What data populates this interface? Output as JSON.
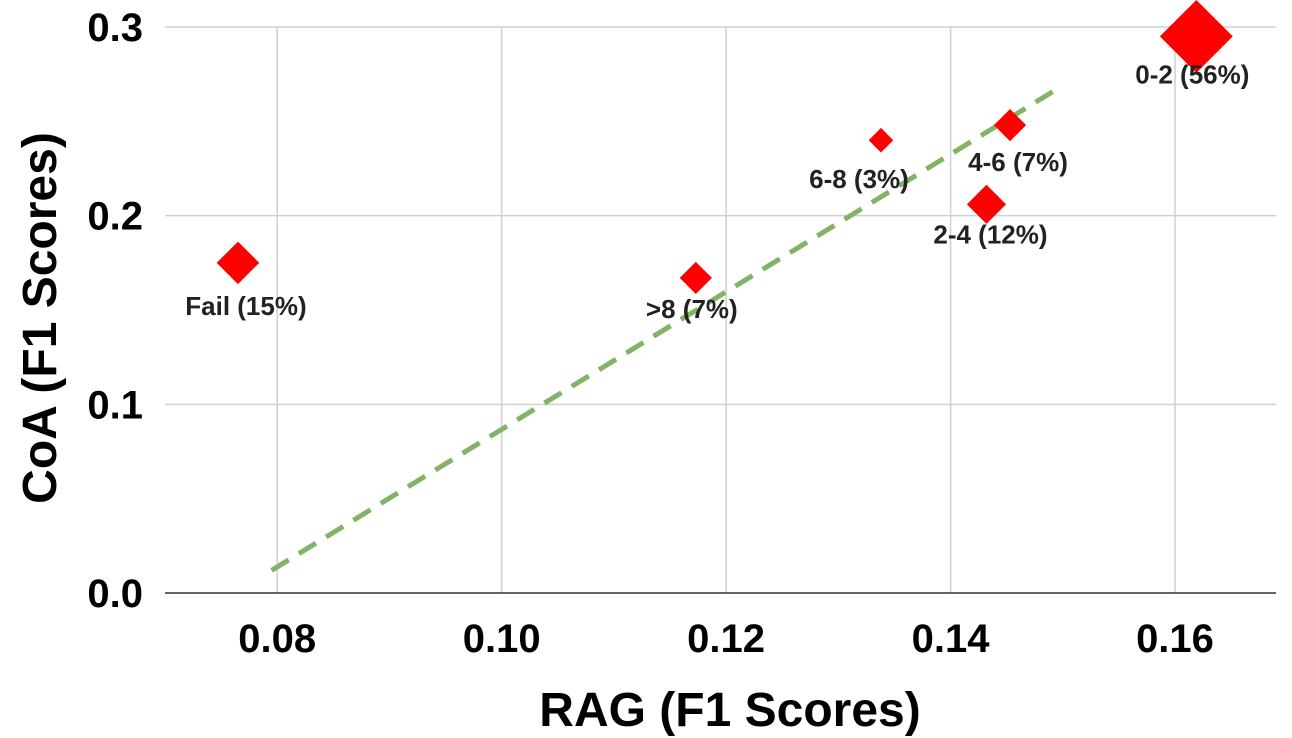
{
  "chart_data": {
    "type": "scatter",
    "title": "",
    "xlabel": "RAG (F1 Scores)",
    "ylabel": "CoA (F1 Scores)",
    "xlim": [
      0.07,
      0.169
    ],
    "ylim": [
      0.0,
      0.3
    ],
    "x_ticks": [
      "0.08",
      "0.10",
      "0.12",
      "0.14",
      "0.16"
    ],
    "y_ticks": [
      "0.0",
      "0.1",
      "0.2",
      "0.3"
    ],
    "grid": true,
    "marker": "diamond",
    "marker_color": "#ff0000",
    "trendline_color": "#82b366",
    "trendline": {
      "style": "dashed",
      "x": [
        0.0795,
        0.15
      ],
      "y": [
        0.012,
        0.269
      ]
    },
    "points": [
      {
        "label": "Fail (15%)",
        "x": 0.0765,
        "y": 0.175,
        "share": 15
      },
      {
        "label": ">8 (7%)",
        "x": 0.1173,
        "y": 0.167,
        "share": 7
      },
      {
        "label": "6-8 (3%)",
        "x": 0.1338,
        "y": 0.24,
        "share": 3
      },
      {
        "label": "4-6 (7%)",
        "x": 0.1453,
        "y": 0.248,
        "share": 7
      },
      {
        "label": "2-4 (12%)",
        "x": 0.1432,
        "y": 0.206,
        "share": 12
      },
      {
        "label": "0-2 (56%)",
        "x": 0.1619,
        "y": 0.295,
        "share": 56
      }
    ]
  }
}
